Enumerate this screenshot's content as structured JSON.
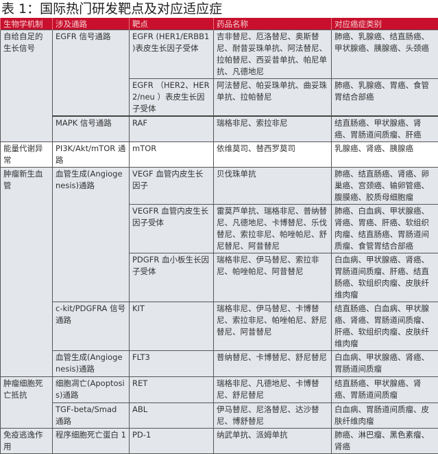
{
  "title": "表 1：国际热门研发靶点及对应适应症",
  "headers": [
    "生物学机制",
    "涉及通路",
    "靶点",
    "药品名称",
    "对应癌症类别"
  ],
  "colors": {
    "header_bg": "#c8102e",
    "row_bg": "#e3e6eb"
  },
  "rows": [
    {
      "mechanism": "自给自足的生长信号",
      "pathway": "EGFR 信号通路",
      "target": "EGFR (HER1/ERBB1 )表皮生长因子受体",
      "drugs": "吉非替尼、厄洛替尼、奥斯替尼、耐昔妥珠单抗、阿法替尼、拉帕替尼、西妥昔单抗、帕尼单抗、凡德地尼",
      "cancers": "肺癌、乳腺癌、结直肠癌、甲状腺癌、胰腺癌、头颈癌"
    },
    {
      "target": "EGFR （HER2、HER 2/neu ）表皮生长因子受体",
      "drugs": "阿法替尼、帕妥珠单抗、曲妥珠单抗、拉帕替尼",
      "cancers": "肺癌、乳腺癌、胃癌、食管胃结合部癌"
    },
    {
      "pathway": "MAPK 信号通路",
      "target": "RAF",
      "drugs": "瑞格非尼、索拉非尼",
      "cancers": "结直肠癌、甲状腺癌、肾癌、胃肠道间质瘤、肝癌"
    },
    {
      "mechanism": "能量代谢异常",
      "pathway": "PI3K/Akt/mTOR 通路",
      "target": "mTOR",
      "drugs": "依维莫司、替西罗莫司",
      "cancers": "乳腺癌、肾癌、胰腺癌"
    },
    {
      "mechanism": "肿瘤新生血管",
      "pathway": "血管生成(Angiogenesis)通路",
      "target": "VEGF 血管内皮生长因子",
      "drugs": "贝伐珠单抗",
      "cancers": "肺癌、结直肠癌、肾癌、卵巢癌、宫颈癌、输卵管癌、腹膜癌、胶质母细胞瘤"
    },
    {
      "target": "VEGFR 血管内皮生长因子受体",
      "drugs": "雷莫芦单抗、瑞格非尼、普纳替尼、凡德地尼、卡博替尼、乐伐替尼、索拉非尼、帕唑帕尼、舒尼替尼、阿昔替尼",
      "cancers": "肺癌、白血病、甲状腺癌、肾癌、胃癌、肝癌、软组织肉瘤、结直肠癌、胃肠道间质瘤、食管胃结合部癌"
    },
    {
      "target": "PDGFR 血小板生长因子受体",
      "drugs": "瑞格非尼、伊马替尼、索拉非尼、帕唑帕尼、阿昔替尼",
      "cancers": "白血病、甲状腺癌、肾癌、胃肠道间质瘤、肝癌、结直肠癌、软组织肉瘤、皮肤纤维肉瘤"
    },
    {
      "pathway": "c-kit/PDGFRA 信号通路",
      "target": "KIT",
      "drugs": "瑞格非尼、伊马替尼、卡博替尼、索拉非尼、帕唑帕尼、舒尼替尼、阿昔替尼",
      "cancers": "结直肠癌、白血病、甲状腺癌、肾癌、胃肠道间质瘤、肝癌、软组织肉瘤、皮肤纤维肉瘤"
    },
    {
      "pathway": "血管生成(Angiogenesis)通路",
      "target": "FLT3",
      "drugs": "普纳替尼、卡博替尼、舒尼替尼",
      "cancers": "白血病、甲状腺癌、肾癌、胃肠道间质瘤"
    },
    {
      "mechanism": "肿瘤细胞死亡抵抗",
      "pathway": "细胞凋亡(Apoptosis)通路",
      "target": "RET",
      "drugs": "瑞格非尼、凡德地尼、卡博替尼、舒尼替尼",
      "cancers": "结直肠癌、甲状腺癌、肾癌、胃肠道间质瘤"
    },
    {
      "pathway": "TGF-beta/Smad 通路",
      "target": "ABL",
      "drugs": "伊马替尼、尼洛替尼、达沙替尼、博舒替尼",
      "cancers": "白血病、胃肠道间质瘤、皮肤纤维肉瘤"
    },
    {
      "mechanism": "免疫逃逸作用",
      "pathway": "程序细胞死亡蛋白 1",
      "target": "PD-1",
      "drugs": "纳武单抗、派姆单抗",
      "cancers": "肺癌、淋巴瘤、黑色素瘤、肾癌"
    }
  ]
}
